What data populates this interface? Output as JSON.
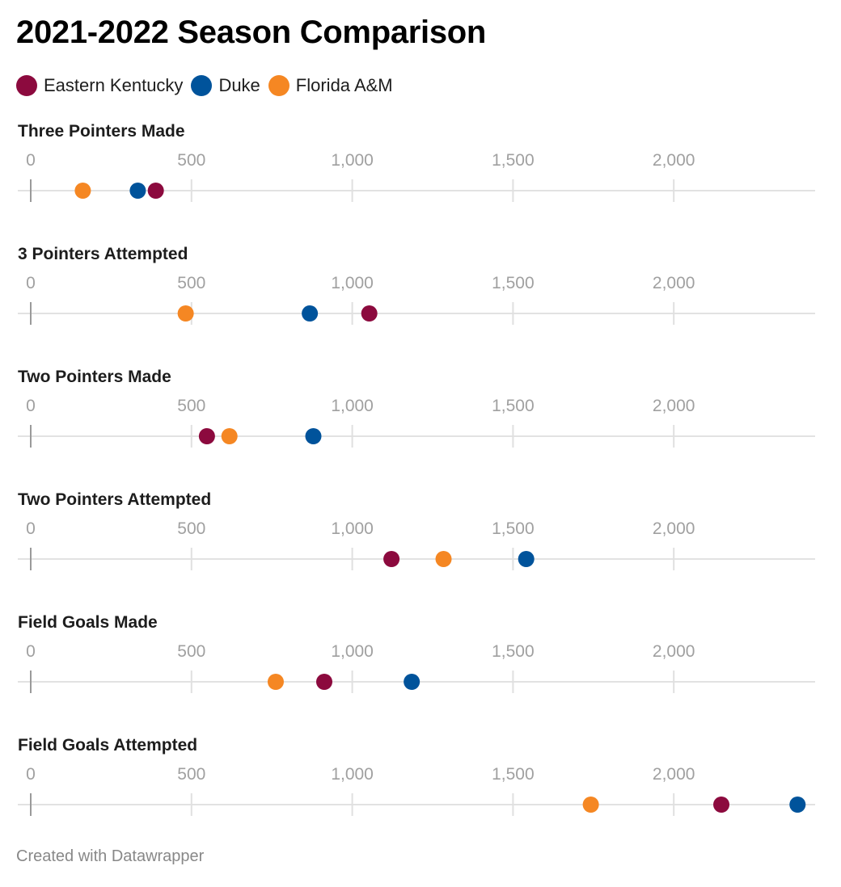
{
  "title": "2021-2022 Season Comparison",
  "footer": "Created with Datawrapper",
  "legend": [
    {
      "name": "Eastern Kentucky",
      "color": "#8c0a3e"
    },
    {
      "name": "Duke",
      "color": "#00539b"
    },
    {
      "name": "Florida A&M",
      "color": "#f58723"
    }
  ],
  "chart_data": [
    {
      "type": "scatter",
      "title": "Three Pointers Made",
      "xlim": [
        0,
        2450
      ],
      "ticks": [
        0,
        500,
        1000,
        1500,
        2000
      ],
      "tick_labels": [
        "0",
        "500",
        "1,000",
        "1,500",
        "2,000"
      ],
      "series": [
        {
          "name": "Eastern Kentucky",
          "value": 389
        },
        {
          "name": "Duke",
          "value": 333
        },
        {
          "name": "Florida A&M",
          "value": 162
        }
      ]
    },
    {
      "type": "scatter",
      "title": "3 Pointers Attempted",
      "xlim": [
        0,
        2450
      ],
      "ticks": [
        0,
        500,
        1000,
        1500,
        2000
      ],
      "tick_labels": [
        "0",
        "500",
        "1,000",
        "1,500",
        "2,000"
      ],
      "series": [
        {
          "name": "Eastern Kentucky",
          "value": 1053
        },
        {
          "name": "Duke",
          "value": 868
        },
        {
          "name": "Florida A&M",
          "value": 482
        }
      ]
    },
    {
      "type": "scatter",
      "title": "Two Pointers Made",
      "xlim": [
        0,
        2450
      ],
      "ticks": [
        0,
        500,
        1000,
        1500,
        2000
      ],
      "tick_labels": [
        "0",
        "500",
        "1,000",
        "1,500",
        "2,000"
      ],
      "series": [
        {
          "name": "Eastern Kentucky",
          "value": 548
        },
        {
          "name": "Duke",
          "value": 879
        },
        {
          "name": "Florida A&M",
          "value": 618
        }
      ]
    },
    {
      "type": "scatter",
      "title": "Two Pointers Attempted",
      "xlim": [
        0,
        2450
      ],
      "ticks": [
        0,
        500,
        1000,
        1500,
        2000
      ],
      "tick_labels": [
        "0",
        "500",
        "1,000",
        "1,500",
        "2,000"
      ],
      "series": [
        {
          "name": "Eastern Kentucky",
          "value": 1122
        },
        {
          "name": "Duke",
          "value": 1541
        },
        {
          "name": "Florida A&M",
          "value": 1284
        }
      ]
    },
    {
      "type": "scatter",
      "title": "Field Goals Made",
      "xlim": [
        0,
        2450
      ],
      "ticks": [
        0,
        500,
        1000,
        1500,
        2000
      ],
      "tick_labels": [
        "0",
        "500",
        "1,000",
        "1,500",
        "2,000"
      ],
      "series": [
        {
          "name": "Eastern Kentucky",
          "value": 913
        },
        {
          "name": "Duke",
          "value": 1185
        },
        {
          "name": "Florida A&M",
          "value": 762
        }
      ]
    },
    {
      "type": "scatter",
      "title": "Field Goals Attempted",
      "xlim": [
        0,
        2450
      ],
      "ticks": [
        0,
        500,
        1000,
        1500,
        2000
      ],
      "tick_labels": [
        "0",
        "500",
        "1,000",
        "1,500",
        "2,000"
      ],
      "series": [
        {
          "name": "Eastern Kentucky",
          "value": 2148
        },
        {
          "name": "Duke",
          "value": 2385
        },
        {
          "name": "Florida A&M",
          "value": 1742
        }
      ]
    }
  ]
}
